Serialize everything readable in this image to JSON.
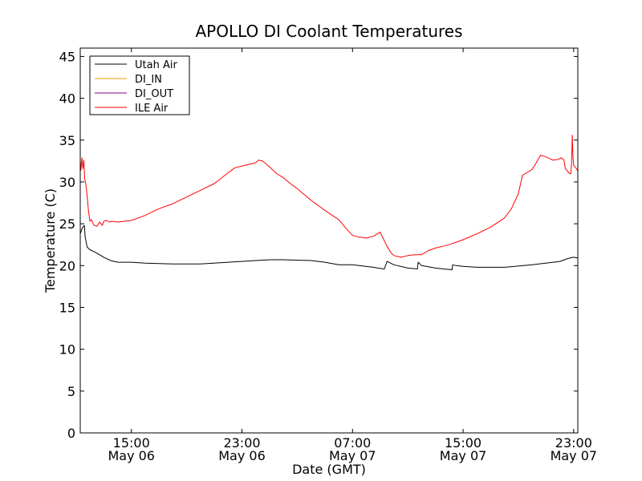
{
  "chart_data": {
    "type": "line",
    "title": "APOLLO DI Coolant Temperatures",
    "xlabel": "Date (GMT)",
    "ylabel": "Temperature (C)",
    "xlim": [
      11.3,
      47.3
    ],
    "ylim": [
      0,
      46
    ],
    "yticks": [
      0,
      5,
      10,
      15,
      20,
      25,
      30,
      35,
      40,
      45
    ],
    "xticks": [
      {
        "x": 15,
        "line1": "15:00",
        "line2": "May 06"
      },
      {
        "x": 23,
        "line1": "23:00",
        "line2": "May 06"
      },
      {
        "x": 31,
        "line1": "07:00",
        "line2": "May 07"
      },
      {
        "x": 39,
        "line1": "15:00",
        "line2": "May 07"
      },
      {
        "x": 47,
        "line1": "23:00",
        "line2": "May 07"
      }
    ],
    "x_units": "hours since 00:00 May 06 (GMT)",
    "legend_position": "upper-left",
    "legend": [
      "Utah Air",
      "DI_IN",
      "DI_OUT",
      "ILE Air"
    ],
    "series": [
      {
        "name": "Utah Air",
        "color": "#000000",
        "x": [
          11.3,
          11.45,
          11.6,
          11.65,
          11.8,
          12.0,
          12.5,
          13.0,
          13.5,
          14.0,
          15.0,
          16.0,
          18.0,
          20.0,
          22.0,
          24.0,
          25.0,
          26.0,
          28.0,
          29.0,
          30.0,
          31.0,
          32.5,
          33.25,
          33.3,
          33.5,
          34.0,
          35.0,
          35.7,
          35.75,
          36.0,
          37.0,
          38.2,
          38.25,
          38.5,
          39.0,
          40.0,
          42.0,
          44.0,
          46.0,
          46.5,
          46.7,
          47.0,
          47.3
        ],
        "y": [
          23.8,
          24.5,
          24.8,
          23.5,
          22.2,
          21.9,
          21.5,
          21.0,
          20.6,
          20.4,
          20.4,
          20.3,
          20.2,
          20.2,
          20.4,
          20.6,
          20.7,
          20.7,
          20.6,
          20.4,
          20.1,
          20.1,
          19.8,
          19.6,
          19.6,
          20.5,
          20.1,
          19.7,
          19.6,
          20.4,
          20.0,
          19.7,
          19.5,
          20.1,
          20.0,
          19.9,
          19.8,
          19.8,
          20.1,
          20.5,
          20.8,
          20.9,
          21.0,
          20.9
        ]
      },
      {
        "name": "DI_IN",
        "color": "#e6a000",
        "x": [],
        "y": []
      },
      {
        "name": "DI_OUT",
        "color": "#7f007f",
        "x": [],
        "y": []
      },
      {
        "name": "ILE Air",
        "color": "#ff0000",
        "x": [
          11.3,
          11.35,
          11.42,
          11.5,
          11.56,
          11.62,
          11.7,
          11.8,
          11.9,
          12.0,
          12.1,
          12.3,
          12.5,
          12.7,
          12.9,
          13.0,
          13.2,
          13.4,
          13.6,
          14.0,
          14.5,
          15.0,
          16.0,
          17.0,
          18.0,
          19.0,
          20.0,
          21.0,
          22.0,
          22.5,
          23.0,
          23.5,
          24.0,
          24.2,
          24.5,
          25.0,
          25.5,
          26.0,
          26.5,
          27.0,
          28.0,
          29.0,
          30.0,
          30.5,
          31.0,
          31.5,
          32.0,
          32.5,
          33.0,
          33.5,
          33.8,
          34.0,
          34.5,
          35.0,
          35.5,
          36.0,
          36.5,
          37.0,
          37.5,
          38.0,
          38.5,
          39.0,
          40.0,
          41.0,
          42.0,
          42.5,
          43.0,
          43.3,
          43.6,
          44.0,
          44.3,
          44.6,
          45.0,
          45.5,
          45.9,
          46.1,
          46.3,
          46.4,
          46.7,
          46.8,
          46.85,
          46.9,
          46.95,
          47.0,
          47.2,
          47.3
        ],
        "y": [
          32.5,
          31.4,
          32.9,
          31.6,
          32.6,
          30.4,
          29.8,
          28.3,
          26.5,
          25.3,
          25.5,
          24.8,
          24.7,
          25.2,
          24.8,
          25.3,
          25.4,
          25.2,
          25.3,
          25.2,
          25.3,
          25.4,
          26.0,
          26.8,
          27.4,
          28.2,
          29.0,
          29.8,
          31.1,
          31.7,
          31.9,
          32.1,
          32.3,
          32.6,
          32.5,
          31.8,
          31.0,
          30.5,
          29.8,
          29.2,
          27.8,
          26.6,
          25.5,
          24.5,
          23.6,
          23.4,
          23.3,
          23.5,
          24.0,
          22.3,
          21.5,
          21.2,
          21.0,
          21.2,
          21.3,
          21.3,
          21.8,
          22.1,
          22.3,
          22.5,
          22.8,
          23.1,
          23.8,
          24.6,
          25.7,
          26.8,
          28.6,
          30.8,
          31.1,
          31.5,
          32.3,
          33.2,
          33.0,
          32.6,
          32.7,
          32.9,
          32.6,
          31.6,
          31.0,
          31.0,
          32.4,
          35.6,
          33.0,
          32.0,
          31.6,
          31.3
        ]
      }
    ]
  }
}
